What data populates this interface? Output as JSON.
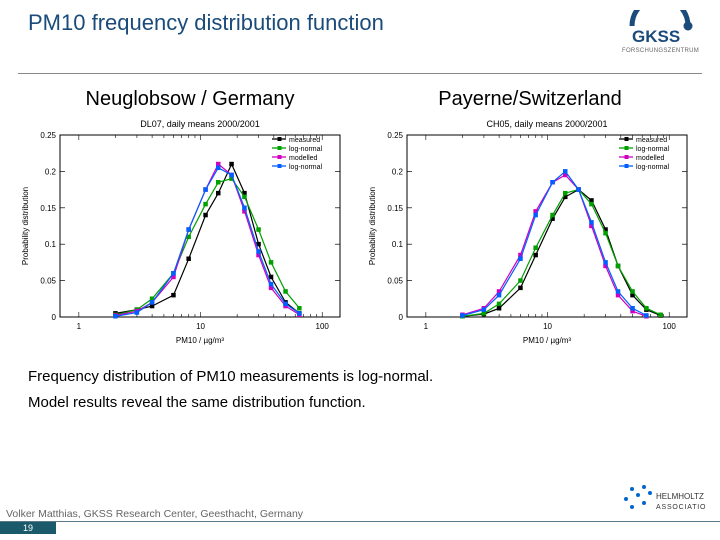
{
  "title": "PM10 frequency distribution function",
  "logo": {
    "name": "GKSS",
    "sub": "FORSCHUNGSZENTRUM",
    "arc_color": "#1a4b7a",
    "name_color": "#1a4b7a",
    "sub_color": "#666"
  },
  "left": {
    "subtitle": "Neuglobsow / Germany",
    "caption": "DL07, daily means 2000/2001",
    "xlabel": "PM10 / µg/m³",
    "ylabel": "Probability distribution",
    "xlim": [
      0.7,
      140
    ],
    "xscale": "log",
    "ylim": [
      0,
      0.25
    ],
    "xticks": [
      1,
      10,
      100
    ],
    "yticks": [
      0,
      0.05,
      0.1,
      0.15,
      0.2,
      0.25
    ],
    "legend": [
      "measured",
      "log-normal",
      "modelled",
      "log-normal"
    ],
    "series": [
      {
        "label": "measured",
        "color": "#000000",
        "marker": "square",
        "x": [
          2,
          3,
          4,
          6,
          8,
          11,
          14,
          18,
          23,
          30,
          38,
          50,
          65
        ],
        "y": [
          0.005,
          0.01,
          0.015,
          0.03,
          0.08,
          0.14,
          0.17,
          0.21,
          0.17,
          0.1,
          0.055,
          0.02,
          0.005
        ]
      },
      {
        "label": "log-normal-fit-measured",
        "color": "#00a000",
        "marker": "square",
        "x": [
          2,
          3,
          4,
          6,
          8,
          11,
          14,
          18,
          23,
          30,
          38,
          50,
          65
        ],
        "y": [
          0.003,
          0.01,
          0.025,
          0.06,
          0.11,
          0.155,
          0.185,
          0.19,
          0.165,
          0.12,
          0.075,
          0.035,
          0.012
        ]
      },
      {
        "label": "modelled",
        "color": "#d000c0",
        "marker": "square",
        "x": [
          2,
          3,
          4,
          6,
          8,
          11,
          14,
          18,
          23,
          30,
          38,
          50,
          65
        ],
        "y": [
          0.002,
          0.008,
          0.02,
          0.055,
          0.12,
          0.175,
          0.21,
          0.195,
          0.145,
          0.085,
          0.04,
          0.015,
          0.003
        ]
      },
      {
        "label": "log-normal-fit-modelled",
        "color": "#0060ff",
        "marker": "square",
        "x": [
          2,
          3,
          4,
          6,
          8,
          11,
          14,
          18,
          23,
          30,
          38,
          50,
          65
        ],
        "y": [
          0.001,
          0.006,
          0.02,
          0.06,
          0.12,
          0.175,
          0.205,
          0.195,
          0.15,
          0.09,
          0.045,
          0.018,
          0.005
        ]
      }
    ]
  },
  "right": {
    "subtitle": "Payerne/Switzerland",
    "caption": "CH05, daily means 2000/2001",
    "xlabel": "PM10 / µg/m³",
    "ylabel": "Probability distribution",
    "xlim": [
      0.7,
      140
    ],
    "xscale": "log",
    "ylim": [
      0,
      0.25
    ],
    "xticks": [
      1,
      10,
      100
    ],
    "yticks": [
      0,
      0.05,
      0.1,
      0.15,
      0.2,
      0.25
    ],
    "legend": [
      "measured",
      "log-normal",
      "modelled",
      "log-normal"
    ],
    "series": [
      {
        "label": "measured",
        "color": "#000000",
        "marker": "square",
        "x": [
          2,
          3,
          4,
          6,
          8,
          11,
          14,
          18,
          23,
          30,
          38,
          50,
          65,
          85
        ],
        "y": [
          0.001,
          0.004,
          0.012,
          0.04,
          0.085,
          0.135,
          0.165,
          0.175,
          0.16,
          0.12,
          0.07,
          0.03,
          0.01,
          0.002
        ]
      },
      {
        "label": "log-normal-fit-measured",
        "color": "#00a000",
        "marker": "square",
        "x": [
          2,
          3,
          4,
          6,
          8,
          11,
          14,
          18,
          23,
          30,
          38,
          50,
          65,
          85
        ],
        "y": [
          0.001,
          0.005,
          0.018,
          0.05,
          0.095,
          0.14,
          0.17,
          0.175,
          0.155,
          0.115,
          0.07,
          0.035,
          0.012,
          0.003
        ]
      },
      {
        "label": "modelled",
        "color": "#d000c0",
        "marker": "square",
        "x": [
          2,
          3,
          4,
          6,
          8,
          11,
          14,
          18,
          23,
          30,
          38,
          50,
          65
        ],
        "y": [
          0.003,
          0.012,
          0.035,
          0.085,
          0.145,
          0.185,
          0.195,
          0.175,
          0.125,
          0.07,
          0.03,
          0.008,
          0.001
        ]
      },
      {
        "label": "log-normal-fit-modelled",
        "color": "#0060ff",
        "marker": "square",
        "x": [
          2,
          3,
          4,
          6,
          8,
          11,
          14,
          18,
          23,
          30,
          38,
          50,
          65
        ],
        "y": [
          0.002,
          0.01,
          0.03,
          0.08,
          0.14,
          0.185,
          0.2,
          0.175,
          0.13,
          0.075,
          0.035,
          0.012,
          0.002
        ]
      }
    ]
  },
  "findings": [
    "Frequency distribution of PM10 measurements is log-normal.",
    "Model results reveal the same distribution function."
  ],
  "footer": {
    "author": "Volker Matthias, GKSS Research Center, Geesthacht, Germany",
    "page": "19"
  },
  "hz_logo": {
    "top": "HELMHOLTZ",
    "bottom": "ASSOCIATION",
    "dot_color": "#0066cc"
  },
  "chart_style": {
    "axis_color": "#000",
    "tick_fontsize": 8,
    "label_fontsize": 8,
    "caption_fontsize": 9,
    "legend_fontsize": 7,
    "linewidth": 1.2,
    "marker_size": 3
  }
}
